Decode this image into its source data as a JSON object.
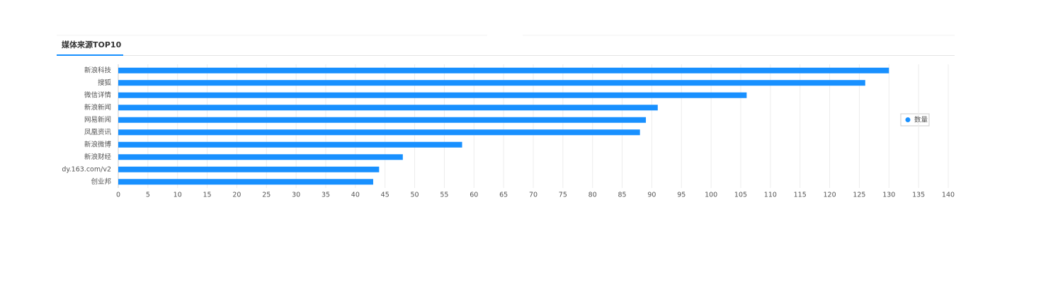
{
  "chart_data": {
    "type": "hbar",
    "title": "媒体来源TOP10",
    "categories": [
      "新浪科技",
      "搜狐",
      "微信详情",
      "新浪新闻",
      "网易新闻",
      "凤凰资讯",
      "新浪微博",
      "新浪财经",
      "dy.163.com/v2",
      "创业邦"
    ],
    "series": [
      {
        "name": "数量",
        "color": "#1890ff",
        "values": [
          130,
          126,
          106,
          91,
          89,
          88,
          58,
          48,
          44,
          43
        ]
      }
    ],
    "xlim": [
      0,
      140
    ],
    "xticks": [
      0,
      5,
      10,
      15,
      20,
      25,
      30,
      35,
      40,
      45,
      50,
      55,
      60,
      65,
      70,
      75,
      80,
      85,
      90,
      95,
      100,
      105,
      110,
      115,
      120,
      125,
      130,
      135,
      140
    ],
    "grid": true,
    "legend": "right"
  }
}
